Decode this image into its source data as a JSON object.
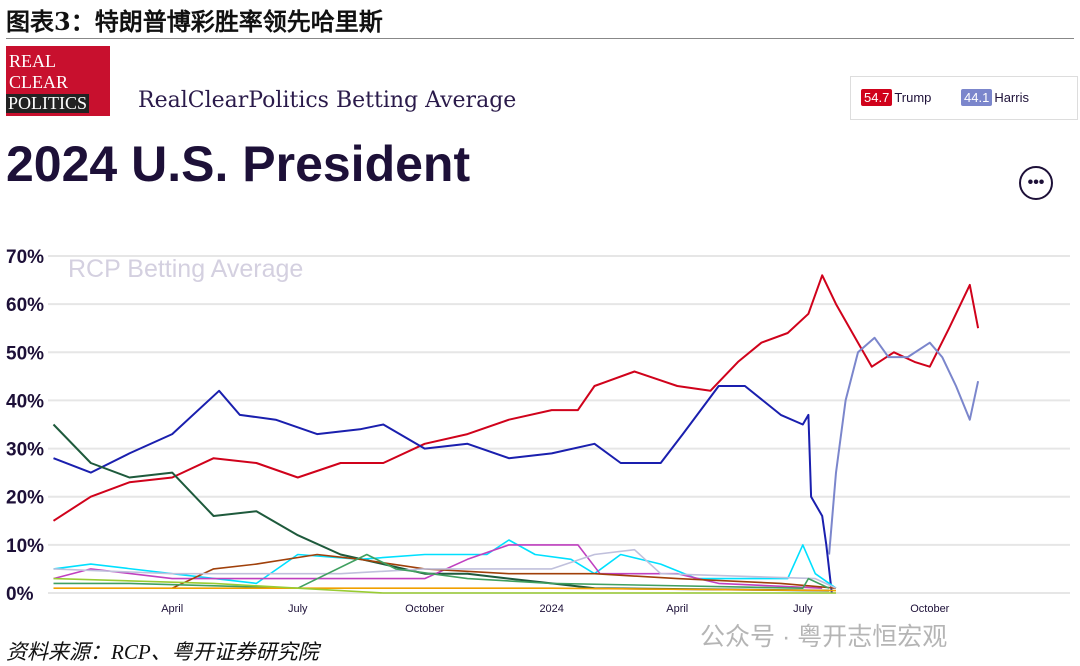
{
  "figure_title": "图表3：特朗普博彩胜率领先哈里斯",
  "logo": {
    "lines": [
      "REAL",
      "CLEAR",
      "POLITICS"
    ]
  },
  "subtitle": "RealClearPolitics Betting Average",
  "headline": "2024 U.S. President",
  "legend": [
    {
      "value": "54.7",
      "name": "Trump",
      "color": "#d0021b"
    },
    {
      "value": "44.1",
      "name": "Harris",
      "color": "#7b86cc"
    }
  ],
  "more_icon": "ellipsis-icon",
  "more_label": "•••",
  "source": "资料来源：RCP、粤开证券研究院",
  "watermark": "公众号 · 粤开志恒宏观",
  "chart_data": {
    "type": "line",
    "title": "RCP Betting Average",
    "ylim": [
      0,
      70
    ],
    "yticks": [
      "0%",
      "10%",
      "20%",
      "30%",
      "40%",
      "50%",
      "60%",
      "70%"
    ],
    "xlim": [
      "2023-01-01",
      "2024-11-10"
    ],
    "xticks": [
      {
        "date": "2023-04-01",
        "label": "April"
      },
      {
        "date": "2023-07-01",
        "label": "July"
      },
      {
        "date": "2023-10-01",
        "label": "October"
      },
      {
        "date": "2024-01-01",
        "label": "2024"
      },
      {
        "date": "2024-04-01",
        "label": "April"
      },
      {
        "date": "2024-07-01",
        "label": "July"
      },
      {
        "date": "2024-10-01",
        "label": "October"
      }
    ],
    "grid": true,
    "series": [
      {
        "name": "Trump",
        "color": "#d0021b",
        "points": [
          [
            "2023-01-05",
            15
          ],
          [
            "2023-02-01",
            20
          ],
          [
            "2023-03-01",
            23
          ],
          [
            "2023-04-01",
            24
          ],
          [
            "2023-05-01",
            28
          ],
          [
            "2023-06-01",
            27
          ],
          [
            "2023-07-01",
            24
          ],
          [
            "2023-08-01",
            27
          ],
          [
            "2023-09-01",
            27
          ],
          [
            "2023-10-01",
            31
          ],
          [
            "2023-11-01",
            33
          ],
          [
            "2023-12-01",
            36
          ],
          [
            "2024-01-01",
            38
          ],
          [
            "2024-01-20",
            38
          ],
          [
            "2024-02-01",
            43
          ],
          [
            "2024-03-01",
            46
          ],
          [
            "2024-04-01",
            43
          ],
          [
            "2024-04-25",
            42
          ],
          [
            "2024-05-15",
            48
          ],
          [
            "2024-06-01",
            52
          ],
          [
            "2024-06-20",
            54
          ],
          [
            "2024-07-05",
            58
          ],
          [
            "2024-07-15",
            66
          ],
          [
            "2024-07-25",
            60
          ],
          [
            "2024-08-10",
            52
          ],
          [
            "2024-08-20",
            47
          ],
          [
            "2024-09-05",
            50
          ],
          [
            "2024-09-20",
            48
          ],
          [
            "2024-10-01",
            47
          ],
          [
            "2024-10-15",
            55
          ],
          [
            "2024-10-30",
            64
          ],
          [
            "2024-11-05",
            55
          ]
        ]
      },
      {
        "name": "",
        "color": "#1a1fae",
        "points": [
          [
            "2023-01-05",
            28
          ],
          [
            "2023-02-01",
            25
          ],
          [
            "2023-03-01",
            29
          ],
          [
            "2023-04-01",
            33
          ],
          [
            "2023-05-05",
            42
          ],
          [
            "2023-05-20",
            37
          ],
          [
            "2023-06-15",
            36
          ],
          [
            "2023-07-15",
            33
          ],
          [
            "2023-08-15",
            34
          ],
          [
            "2023-09-01",
            35
          ],
          [
            "2023-10-01",
            30
          ],
          [
            "2023-11-01",
            31
          ],
          [
            "2023-12-01",
            28
          ],
          [
            "2024-01-01",
            29
          ],
          [
            "2024-02-01",
            31
          ],
          [
            "2024-02-20",
            27
          ],
          [
            "2024-03-20",
            27
          ],
          [
            "2024-04-05",
            33
          ],
          [
            "2024-05-01",
            43
          ],
          [
            "2024-05-20",
            43
          ],
          [
            "2024-06-15",
            37
          ],
          [
            "2024-07-01",
            35
          ],
          [
            "2024-07-05",
            37
          ],
          [
            "2024-07-07",
            20
          ],
          [
            "2024-07-15",
            16
          ],
          [
            "2024-07-18",
            10
          ],
          [
            "2024-07-22",
            0
          ]
        ]
      },
      {
        "name": "Harris",
        "color": "#7b86cc",
        "points": [
          [
            "2024-07-20",
            8
          ],
          [
            "2024-07-25",
            25
          ],
          [
            "2024-08-01",
            40
          ],
          [
            "2024-08-10",
            50
          ],
          [
            "2024-08-22",
            53
          ],
          [
            "2024-09-01",
            49
          ],
          [
            "2024-09-15",
            49
          ],
          [
            "2024-10-01",
            52
          ],
          [
            "2024-10-10",
            49
          ],
          [
            "2024-10-20",
            43
          ],
          [
            "2024-10-30",
            36
          ],
          [
            "2024-11-05",
            44
          ]
        ]
      },
      {
        "name": "",
        "color": "#1e5a3c",
        "points": [
          [
            "2023-01-05",
            35
          ],
          [
            "2023-02-01",
            27
          ],
          [
            "2023-03-01",
            24
          ],
          [
            "2023-04-01",
            25
          ],
          [
            "2023-05-01",
            16
          ],
          [
            "2023-06-01",
            17
          ],
          [
            "2023-07-01",
            12
          ],
          [
            "2023-08-01",
            8
          ],
          [
            "2023-09-01",
            6
          ],
          [
            "2023-10-01",
            4
          ],
          [
            "2023-11-01",
            4
          ],
          [
            "2023-12-01",
            3
          ],
          [
            "2024-01-01",
            2
          ],
          [
            "2024-02-01",
            1
          ],
          [
            "2024-07-20",
            0.5
          ]
        ]
      },
      {
        "name": "",
        "color": "#00e0ff",
        "points": [
          [
            "2023-01-05",
            5
          ],
          [
            "2023-02-01",
            6
          ],
          [
            "2023-04-01",
            4
          ],
          [
            "2023-06-01",
            2
          ],
          [
            "2023-07-01",
            8
          ],
          [
            "2023-08-15",
            7
          ],
          [
            "2023-10-01",
            8
          ],
          [
            "2023-11-15",
            8
          ],
          [
            "2023-12-01",
            11
          ],
          [
            "2023-12-20",
            8
          ],
          [
            "2024-01-15",
            7
          ],
          [
            "2024-02-01",
            4
          ],
          [
            "2024-02-20",
            8
          ],
          [
            "2024-03-20",
            6
          ],
          [
            "2024-04-15",
            3
          ],
          [
            "2024-06-20",
            3
          ],
          [
            "2024-07-01",
            10
          ],
          [
            "2024-07-10",
            4
          ],
          [
            "2024-07-25",
            1
          ]
        ]
      },
      {
        "name": "",
        "color": "#c040c0",
        "points": [
          [
            "2023-01-05",
            3
          ],
          [
            "2023-02-01",
            5
          ],
          [
            "2023-04-01",
            3
          ],
          [
            "2023-10-01",
            3
          ],
          [
            "2023-11-01",
            7
          ],
          [
            "2023-12-01",
            10
          ],
          [
            "2024-01-20",
            10
          ],
          [
            "2024-02-05",
            4
          ],
          [
            "2024-04-01",
            4
          ],
          [
            "2024-05-01",
            2
          ],
          [
            "2024-07-15",
            1
          ]
        ]
      },
      {
        "name": "",
        "color": "#a0400a",
        "points": [
          [
            "2023-04-01",
            1
          ],
          [
            "2023-05-01",
            5
          ],
          [
            "2023-06-01",
            6
          ],
          [
            "2023-07-15",
            8
          ],
          [
            "2023-08-15",
            7
          ],
          [
            "2023-10-01",
            5
          ],
          [
            "2023-12-01",
            4
          ],
          [
            "2024-02-01",
            4
          ],
          [
            "2024-04-01",
            3
          ],
          [
            "2024-06-15",
            2
          ],
          [
            "2024-07-25",
            1
          ]
        ]
      },
      {
        "name": "",
        "color": "#c0c0dc",
        "points": [
          [
            "2023-01-05",
            5
          ],
          [
            "2023-04-01",
            4
          ],
          [
            "2023-08-01",
            4
          ],
          [
            "2023-10-01",
            5
          ],
          [
            "2024-01-01",
            5
          ],
          [
            "2024-02-01",
            8
          ],
          [
            "2024-03-01",
            9
          ],
          [
            "2024-03-20",
            4
          ],
          [
            "2024-07-10",
            3
          ],
          [
            "2024-07-25",
            1
          ]
        ]
      },
      {
        "name": "",
        "color": "#40a060",
        "points": [
          [
            "2023-01-05",
            2
          ],
          [
            "2023-03-01",
            2
          ],
          [
            "2023-07-01",
            1
          ],
          [
            "2023-08-20",
            8
          ],
          [
            "2023-09-10",
            5
          ],
          [
            "2023-11-01",
            3
          ],
          [
            "2024-01-01",
            2
          ],
          [
            "2024-07-01",
            1
          ],
          [
            "2024-07-05",
            3
          ],
          [
            "2024-07-20",
            1
          ]
        ]
      },
      {
        "name": "",
        "color": "#f0a000",
        "points": [
          [
            "2023-01-05",
            1
          ],
          [
            "2023-06-01",
            1
          ],
          [
            "2023-10-01",
            1
          ],
          [
            "2024-01-01",
            1
          ],
          [
            "2024-07-25",
            0.5
          ]
        ]
      },
      {
        "name": "",
        "color": "#99cc33",
        "points": [
          [
            "2023-01-05",
            3
          ],
          [
            "2023-05-01",
            2
          ],
          [
            "2023-09-01",
            0
          ],
          [
            "2024-07-25",
            0
          ]
        ]
      }
    ]
  }
}
